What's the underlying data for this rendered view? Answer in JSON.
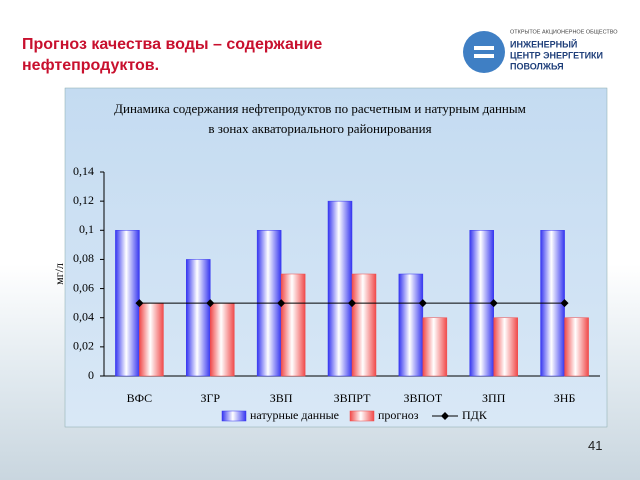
{
  "slide": {
    "title": "Прогноз качества воды – содержание нефтепродуктов.",
    "page_number": "41",
    "logo": {
      "caption": "ОТКРЫТОЕ АКЦИОНЕРНОЕ ОБЩЕСТВО",
      "lines": [
        "ИНЖЕНЕРНЫЙ",
        "ЦЕНТР ЭНЕРГЕТИКИ",
        "ПОВОЛЖЬЯ"
      ]
    }
  },
  "chart_data": {
    "type": "bar",
    "title": [
      "Динамика содержания нефтепродуктов по расчетным и натурным данным",
      "в зонах акваториального районирования"
    ],
    "y_label": "мг/л",
    "categories": [
      "ВФС",
      "ЗГР",
      "ЗВП",
      "ЗВПРТ",
      "ЗВПОТ",
      "ЗПП",
      "ЗНБ"
    ],
    "series": [
      {
        "name": "натурные данные",
        "type": "bar",
        "color": "#3636f0",
        "values": [
          0.1,
          0.08,
          0.1,
          0.12,
          0.07,
          0.1,
          0.1
        ]
      },
      {
        "name": "прогноз",
        "type": "bar",
        "color": "#f04a4a",
        "values": [
          0.05,
          0.05,
          0.07,
          0.07,
          0.04,
          0.04,
          0.04
        ]
      },
      {
        "name": "ПДК",
        "type": "line",
        "color": "#000000",
        "values": [
          0.05,
          0.05,
          0.05,
          0.05,
          0.05,
          0.05,
          0.05
        ]
      }
    ],
    "ylim": [
      0,
      0.14
    ],
    "yticks": [
      0,
      {
        "value": 0.02,
        "label": "0,02"
      },
      {
        "value": 0.04,
        "label": "0,04"
      },
      {
        "value": 0.06,
        "label": "0,06"
      },
      {
        "value": 0.08,
        "label": "0,08"
      },
      {
        "value": 0.1,
        "label": "0,1"
      },
      {
        "value": 0.12,
        "label": "0,12"
      },
      {
        "value": 0.14,
        "label": "0,14"
      }
    ],
    "legend": "bottom"
  }
}
